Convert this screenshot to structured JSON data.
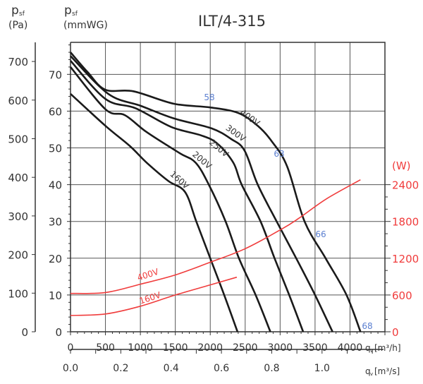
{
  "chart_data": {
    "type": "line",
    "title": "ILT/4-315",
    "ylabel_pa": {
      "main": "p",
      "sub": "sf",
      "unit": "(Pa)"
    },
    "ylabel_mm": {
      "main": "p",
      "sub": "sf",
      "unit": "(mmWG)"
    },
    "ylabel_w": "(W)",
    "xlabel_h": {
      "main": "q",
      "sub": "v",
      "unit": "[m³/h]"
    },
    "xlabel_s": {
      "main": "q",
      "sub": "v",
      "unit": "[m³/s]"
    },
    "xlim_m3h": [
      0,
      4500
    ],
    "ylim_mmwg": [
      0,
      78.7
    ],
    "grid": true,
    "colors": {
      "pressure": "#1a1a1a",
      "power": "#f03c3c",
      "noise": "#5b7fd0",
      "axis": "#333333"
    },
    "x_ticks_m3h": [
      "0",
      "500",
      "1000",
      "1500",
      "2000",
      "2500",
      "3000",
      "3500",
      "4000"
    ],
    "x_ticks_m3s": [
      "0.0",
      "0.2",
      "0.4",
      "0.6",
      "0.8",
      "1.0"
    ],
    "y_ticks_pa": [
      "0",
      "100",
      "200",
      "300",
      "400",
      "500",
      "600",
      "700"
    ],
    "y_ticks_mmwg": [
      "0",
      "10",
      "20",
      "30",
      "40",
      "50",
      "60",
      "70"
    ],
    "y_ticks_w": [
      "0",
      "600",
      "1200",
      "1800",
      "2400"
    ],
    "pressure_series": [
      {
        "name": "400V",
        "points": [
          [
            0,
            76
          ],
          [
            250,
            70.5
          ],
          [
            500,
            65.8
          ],
          [
            900,
            65.4
          ],
          [
            1480,
            62
          ],
          [
            2000,
            61
          ],
          [
            2400,
            59.5
          ],
          [
            2680,
            56
          ],
          [
            2880,
            51.8
          ],
          [
            3100,
            45
          ],
          [
            3350,
            30
          ],
          [
            3650,
            20
          ],
          [
            3950,
            10
          ],
          [
            4150,
            0
          ]
        ]
      },
      {
        "name": "300V",
        "points": [
          [
            0,
            75
          ],
          [
            540,
            64.7
          ],
          [
            1010,
            61.4
          ],
          [
            1480,
            58
          ],
          [
            2020,
            55.3
          ],
          [
            2300,
            52.4
          ],
          [
            2490,
            49.3
          ],
          [
            2680,
            40
          ],
          [
            2950,
            30
          ],
          [
            3230,
            20
          ],
          [
            3500,
            10
          ],
          [
            3750,
            0
          ]
        ]
      },
      {
        "name": "250V",
        "points": [
          [
            0,
            73.7
          ],
          [
            500,
            63.3
          ],
          [
            930,
            60.8
          ],
          [
            1440,
            55.7
          ],
          [
            1870,
            53.4
          ],
          [
            2100,
            51.2
          ],
          [
            2330,
            46
          ],
          [
            2450,
            40
          ],
          [
            2720,
            30
          ],
          [
            2920,
            20
          ],
          [
            3130,
            10
          ],
          [
            3330,
            0
          ]
        ]
      },
      {
        "name": "200V",
        "points": [
          [
            0,
            72
          ],
          [
            500,
            60.5
          ],
          [
            780,
            58.9
          ],
          [
            1090,
            54.3
          ],
          [
            1560,
            48.6
          ],
          [
            1790,
            46
          ],
          [
            1980,
            40
          ],
          [
            2220,
            30
          ],
          [
            2410,
            20
          ],
          [
            2650,
            10
          ],
          [
            2860,
            0
          ]
        ]
      },
      {
        "name": "160V",
        "points": [
          [
            0,
            64.7
          ],
          [
            500,
            56
          ],
          [
            850,
            50.5
          ],
          [
            1090,
            46
          ],
          [
            1400,
            41
          ],
          [
            1640,
            38
          ],
          [
            1800,
            30
          ],
          [
            2000,
            20
          ],
          [
            2200,
            10
          ],
          [
            2390,
            0
          ]
        ]
      }
    ],
    "power_series": [
      {
        "name": "400V",
        "points": [
          [
            0,
            625
          ],
          [
            500,
            640
          ],
          [
            1000,
            776
          ],
          [
            1500,
            927
          ],
          [
            2000,
            1135
          ],
          [
            2500,
            1355
          ],
          [
            3030,
            1680
          ],
          [
            3270,
            1853
          ],
          [
            3660,
            2166
          ],
          [
            4150,
            2480
          ]
        ]
      },
      {
        "name": "160V",
        "points": [
          [
            0,
            266
          ],
          [
            500,
            290
          ],
          [
            1000,
            417
          ],
          [
            1500,
            600
          ],
          [
            2000,
            765
          ],
          [
            2380,
            890
          ]
        ]
      }
    ],
    "noise_labels": [
      "58",
      "63",
      "66",
      "68"
    ]
  }
}
